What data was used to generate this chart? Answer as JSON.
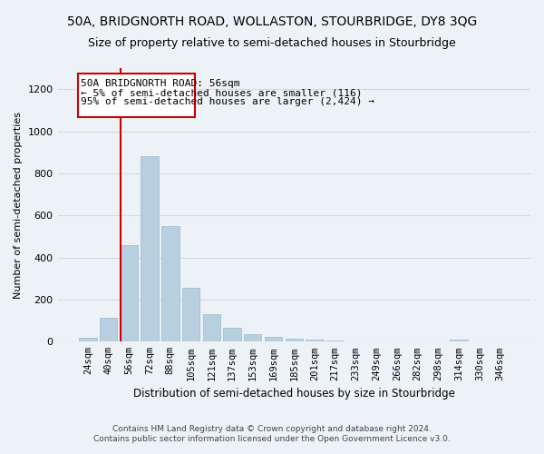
{
  "title": "50A, BRIDGNORTH ROAD, WOLLASTON, STOURBRIDGE, DY8 3QG",
  "subtitle": "Size of property relative to semi-detached houses in Stourbridge",
  "xlabel": "Distribution of semi-detached houses by size in Stourbridge",
  "ylabel": "Number of semi-detached properties",
  "footer_line1": "Contains HM Land Registry data © Crown copyright and database right 2024.",
  "footer_line2": "Contains public sector information licensed under the Open Government Licence v3.0.",
  "annotation_title": "50A BRIDGNORTH ROAD: 56sqm",
  "annotation_line1": "← 5% of semi-detached houses are smaller (116)",
  "annotation_line2": "95% of semi-detached houses are larger (2,424) →",
  "bar_color": "#b8cfe0",
  "bar_edge_color": "#9ab8ce",
  "highlight_color": "#cc0000",
  "highlight_bin_index": 2,
  "categories": [
    "24sqm",
    "40sqm",
    "56sqm",
    "72sqm",
    "88sqm",
    "105sqm",
    "121sqm",
    "137sqm",
    "153sqm",
    "169sqm",
    "185sqm",
    "201sqm",
    "217sqm",
    "233sqm",
    "249sqm",
    "266sqm",
    "282sqm",
    "298sqm",
    "314sqm",
    "330sqm",
    "346sqm"
  ],
  "values": [
    20,
    115,
    460,
    880,
    550,
    255,
    130,
    65,
    35,
    22,
    14,
    10,
    5,
    3,
    3,
    0,
    0,
    0,
    10,
    0,
    0
  ],
  "ylim": [
    0,
    1300
  ],
  "yticks": [
    0,
    200,
    400,
    600,
    800,
    1000,
    1200
  ],
  "grid_color": "#d0dae2",
  "bg_color": "#edf2f7",
  "title_fontsize": 10,
  "subtitle_fontsize": 9,
  "ylabel_fontsize": 8,
  "xlabel_fontsize": 8.5
}
